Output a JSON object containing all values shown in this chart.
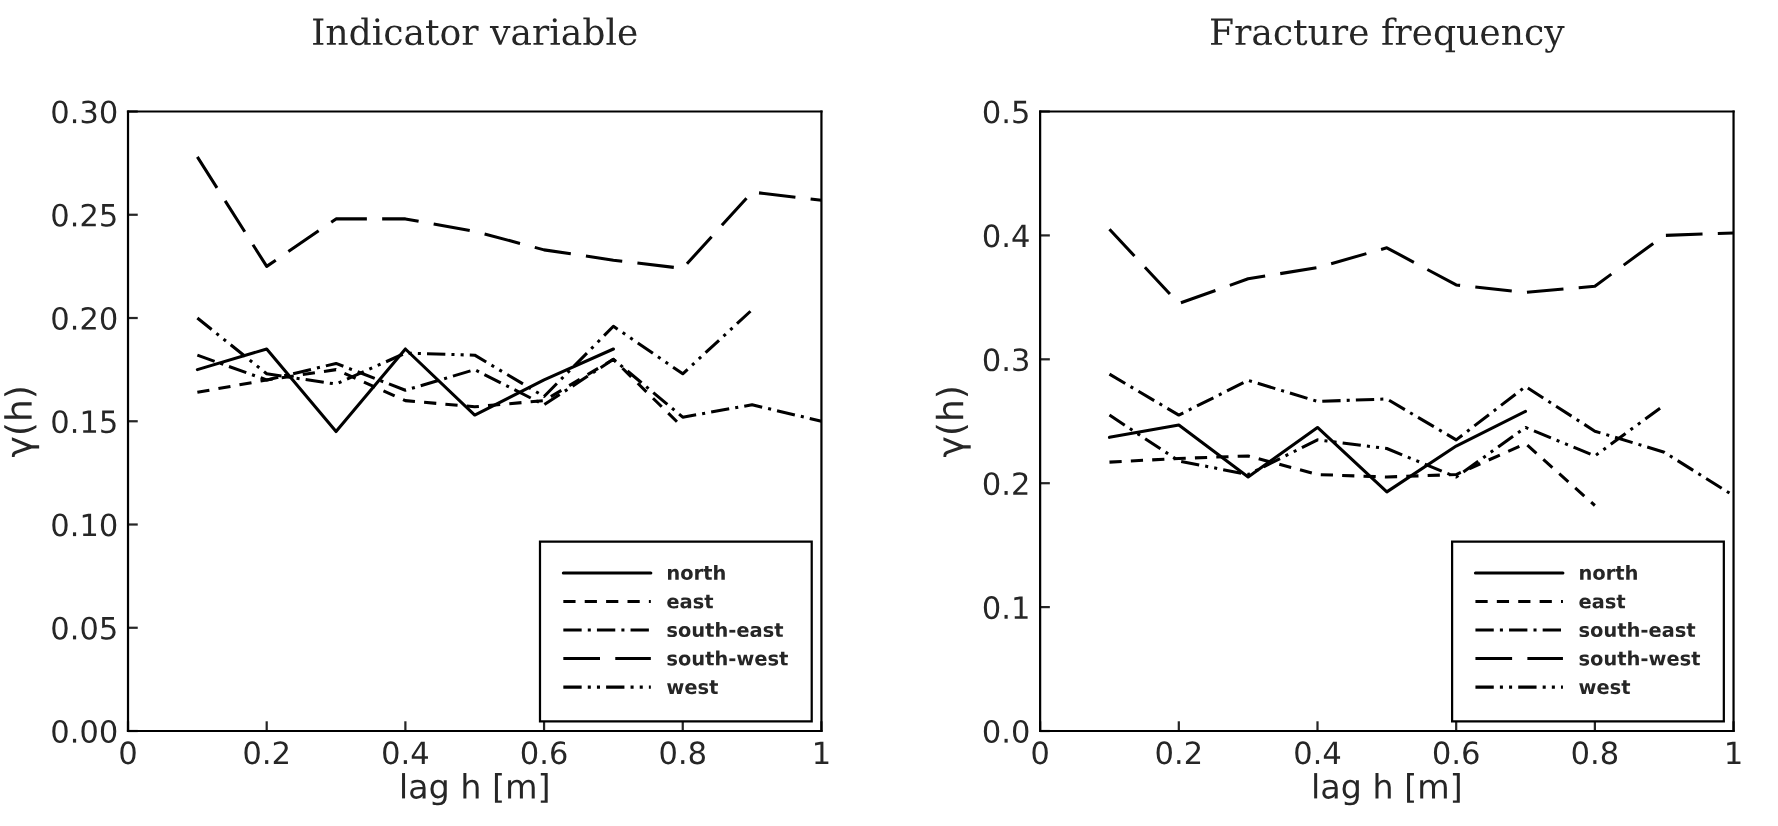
{
  "chart_data": [
    {
      "type": "line",
      "title": "Indicator variable",
      "xlabel": "lag h [m]",
      "ylabel": "γ(h)",
      "xlim": [
        0,
        1
      ],
      "xticks": [
        0,
        0.2,
        0.4,
        0.6,
        0.8,
        1
      ],
      "ylim": [
        0,
        0.3
      ],
      "yticks": [
        {
          "value": 0,
          "label": "0.00"
        },
        {
          "value": 0.05,
          "label": "0.05"
        },
        {
          "value": 0.1,
          "label": "0.10"
        },
        {
          "value": 0.15,
          "label": "0.15"
        },
        {
          "value": 0.2,
          "label": "0.20"
        },
        {
          "value": 0.25,
          "label": "0.25"
        },
        {
          "value": 0.3,
          "label": "0.30"
        }
      ],
      "grid": false,
      "legend": "bottom right",
      "series": [
        {
          "name": "north",
          "color": "#000000",
          "line_style": "solid",
          "x": [
            0.1,
            0.2,
            0.3,
            0.4,
            0.5,
            0.6,
            0.7
          ],
          "values": [
            0.175,
            0.185,
            0.145,
            0.185,
            0.153,
            0.17,
            0.185
          ]
        },
        {
          "name": "east",
          "color": "#000000",
          "line_style": "dashed",
          "x": [
            0.1,
            0.2,
            0.3,
            0.4,
            0.5,
            0.6,
            0.7,
            0.8
          ],
          "values": [
            0.164,
            0.17,
            0.175,
            0.16,
            0.157,
            0.16,
            0.18,
            0.147
          ]
        },
        {
          "name": "south-east",
          "color": "#000000",
          "line_style": "dashdot",
          "x": [
            0.1,
            0.2,
            0.3,
            0.4,
            0.5,
            0.6,
            0.7,
            0.8,
            0.9,
            1.0
          ],
          "values": [
            0.182,
            0.17,
            0.178,
            0.165,
            0.175,
            0.158,
            0.18,
            0.152,
            0.158,
            0.15
          ]
        },
        {
          "name": "south-west",
          "color": "#000000",
          "line_style": "longdash",
          "x": [
            0.1,
            0.2,
            0.3,
            0.4,
            0.5,
            0.6,
            0.7,
            0.8,
            0.9,
            1.0
          ],
          "values": [
            0.278,
            0.225,
            0.248,
            0.248,
            0.242,
            0.233,
            0.228,
            0.224,
            0.261,
            0.257
          ]
        },
        {
          "name": "west",
          "color": "#000000",
          "line_style": "dashdotdot",
          "x": [
            0.1,
            0.2,
            0.3,
            0.4,
            0.5,
            0.6,
            0.7,
            0.8,
            0.9
          ],
          "values": [
            0.2,
            0.173,
            0.168,
            0.183,
            0.182,
            0.162,
            0.196,
            0.173,
            0.204
          ]
        }
      ]
    },
    {
      "type": "line",
      "title": "Fracture frequency",
      "xlabel": "lag h [m]",
      "ylabel": "γ(h)",
      "xlim": [
        0,
        1
      ],
      "xticks": [
        0,
        0.2,
        0.4,
        0.6,
        0.8,
        1
      ],
      "ylim": [
        0,
        0.5
      ],
      "yticks": [
        {
          "value": 0,
          "label": "0.0"
        },
        {
          "value": 0.1,
          "label": "0.1"
        },
        {
          "value": 0.2,
          "label": "0.2"
        },
        {
          "value": 0.3,
          "label": "0.3"
        },
        {
          "value": 0.4,
          "label": "0.4"
        },
        {
          "value": 0.5,
          "label": "0.5"
        }
      ],
      "grid": false,
      "legend": "bottom right",
      "series": [
        {
          "name": "north",
          "color": "#000000",
          "line_style": "solid",
          "x": [
            0.1,
            0.2,
            0.3,
            0.4,
            0.5,
            0.6,
            0.7
          ],
          "values": [
            0.237,
            0.247,
            0.205,
            0.245,
            0.193,
            0.23,
            0.258
          ]
        },
        {
          "name": "east",
          "color": "#000000",
          "line_style": "dashed",
          "x": [
            0.1,
            0.2,
            0.3,
            0.4,
            0.5,
            0.6,
            0.7,
            0.8
          ],
          "values": [
            0.217,
            0.22,
            0.222,
            0.207,
            0.205,
            0.207,
            0.232,
            0.182
          ]
        },
        {
          "name": "south-east",
          "color": "#000000",
          "line_style": "dashdot",
          "x": [
            0.1,
            0.2,
            0.3,
            0.4,
            0.5,
            0.6,
            0.7,
            0.8,
            0.9,
            1.0
          ],
          "values": [
            0.288,
            0.255,
            0.283,
            0.266,
            0.268,
            0.235,
            0.278,
            0.242,
            0.225,
            0.19
          ]
        },
        {
          "name": "south-west",
          "color": "#000000",
          "line_style": "longdash",
          "x": [
            0.1,
            0.2,
            0.3,
            0.4,
            0.5,
            0.6,
            0.7,
            0.8,
            0.9,
            1.0
          ],
          "values": [
            0.405,
            0.345,
            0.365,
            0.374,
            0.39,
            0.36,
            0.354,
            0.359,
            0.4,
            0.402
          ]
        },
        {
          "name": "west",
          "color": "#000000",
          "line_style": "dashdotdot",
          "x": [
            0.1,
            0.2,
            0.3,
            0.4,
            0.5,
            0.6,
            0.7,
            0.8,
            0.9
          ],
          "values": [
            0.255,
            0.218,
            0.207,
            0.235,
            0.228,
            0.205,
            0.245,
            0.222,
            0.263
          ]
        }
      ]
    }
  ]
}
